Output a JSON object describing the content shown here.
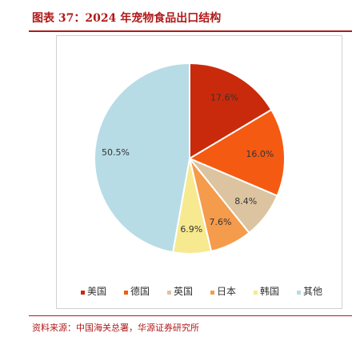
{
  "header": {
    "title": "图表 37：2024 年宠物食品出口结构"
  },
  "footer": {
    "source": "资料来源：中国海关总署，华源证券研究所"
  },
  "chart_data": {
    "type": "pie",
    "title": "",
    "start_angle_deg": 0,
    "direction": "clockwise",
    "legend_position": "bottom",
    "slices": [
      {
        "name": "美国",
        "value": 17.6,
        "label": "17.6%",
        "color": "#c92a0c"
      },
      {
        "name": "德国",
        "value": 16.0,
        "label": "16.0%",
        "color": "#f55a12"
      },
      {
        "name": "英国",
        "value": 8.4,
        "label": "8.4%",
        "color": "#dcc4a0"
      },
      {
        "name": "日本",
        "value": 7.6,
        "label": "7.6%",
        "color": "#f59b4c"
      },
      {
        "name": "韩国",
        "value": 6.9,
        "label": "6.9%",
        "color": "#f7e98f"
      },
      {
        "name": "其他",
        "value": 50.5,
        "label": "50.5%",
        "color": "#b7dce6"
      }
    ]
  }
}
